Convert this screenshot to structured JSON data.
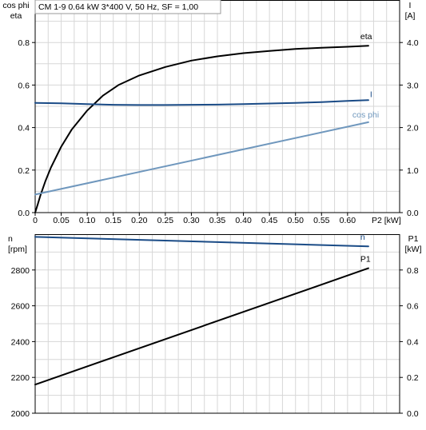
{
  "header": {
    "text": "CM 1-9   0.64 kW   3*400 V, 50 Hz, SF = 1,00"
  },
  "colors": {
    "eta": "#000000",
    "I": "#1a4b86",
    "cosphi": "#6f97bd",
    "n": "#1a4b86",
    "P1": "#000000"
  },
  "chart_data": [
    {
      "type": "line",
      "x_axis": {
        "label": "P2 [kW]",
        "range": [
          0,
          0.7
        ],
        "ticks": [
          0,
          0.05,
          0.1,
          0.15,
          0.2,
          0.25,
          0.3,
          0.35,
          0.4,
          0.45,
          0.5,
          0.55,
          0.6
        ],
        "tick_labels": [
          "0",
          "0.05",
          "0.10",
          "0.15",
          "0.20",
          "0.25",
          "0.30",
          "0.35",
          "0.40",
          "0.45",
          "0.50",
          "0.55",
          "0.60"
        ]
      },
      "y_left": {
        "label_line1": "cos phi",
        "label_line2": "eta",
        "range": [
          0,
          1.0
        ],
        "ticks": [
          0,
          0.2,
          0.4,
          0.6,
          0.8
        ],
        "tick_labels": [
          "0.0",
          "0.2",
          "0.4",
          "0.6",
          "0.8"
        ]
      },
      "y_right": {
        "label_line1": "I",
        "label_line2": "[A]",
        "range": [
          0,
          5.0
        ],
        "ticks": [
          0,
          1,
          2,
          3,
          4
        ],
        "tick_labels": [
          "0.0",
          "1.0",
          "2.0",
          "3.0",
          "4.0"
        ]
      },
      "grid": true,
      "series": [
        {
          "name": "eta",
          "axis": "left",
          "color_key": "eta",
          "x": [
            0,
            0.005,
            0.01,
            0.02,
            0.03,
            0.05,
            0.07,
            0.1,
            0.13,
            0.16,
            0.2,
            0.25,
            0.3,
            0.35,
            0.4,
            0.45,
            0.5,
            0.55,
            0.6,
            0.64
          ],
          "y": [
            0,
            0.04,
            0.08,
            0.15,
            0.21,
            0.31,
            0.39,
            0.48,
            0.55,
            0.6,
            0.645,
            0.685,
            0.715,
            0.735,
            0.75,
            0.76,
            0.77,
            0.775,
            0.78,
            0.785
          ]
        },
        {
          "name": "I",
          "axis": "right",
          "color_key": "I",
          "x": [
            0,
            0.05,
            0.1,
            0.15,
            0.2,
            0.25,
            0.3,
            0.35,
            0.4,
            0.45,
            0.5,
            0.55,
            0.6,
            0.64
          ],
          "y": [
            2.58,
            2.57,
            2.55,
            2.535,
            2.53,
            2.53,
            2.535,
            2.54,
            2.55,
            2.565,
            2.58,
            2.6,
            2.625,
            2.645
          ]
        },
        {
          "name": "cos phi",
          "axis": "left",
          "color_key": "cosphi",
          "x": [
            0,
            0.64
          ],
          "y": [
            0.085,
            0.425
          ]
        }
      ]
    },
    {
      "type": "line",
      "x_axis": {
        "range": [
          0,
          0.7
        ]
      },
      "y_left": {
        "label_line1": "n",
        "label_line2": "[rpm]",
        "range": [
          2000,
          3000
        ],
        "ticks": [
          2000,
          2200,
          2400,
          2600,
          2800
        ],
        "tick_labels": [
          "2000",
          "2200",
          "2400",
          "2600",
          "2800"
        ]
      },
      "y_right": {
        "label_line1": "P1",
        "label_line2": "[kW]",
        "range": [
          0,
          1.0
        ],
        "ticks": [
          0,
          0.2,
          0.4,
          0.6,
          0.8
        ],
        "tick_labels": [
          "0.0",
          "0.2",
          "0.4",
          "0.6",
          "0.8"
        ]
      },
      "grid": true,
      "series": [
        {
          "name": "n",
          "axis": "left",
          "color_key": "n",
          "x": [
            0,
            0.64
          ],
          "y": [
            2985,
            2932
          ]
        },
        {
          "name": "P1",
          "axis": "right",
          "color_key": "P1",
          "x": [
            0,
            0.64
          ],
          "y": [
            0.16,
            0.81
          ]
        }
      ]
    }
  ]
}
